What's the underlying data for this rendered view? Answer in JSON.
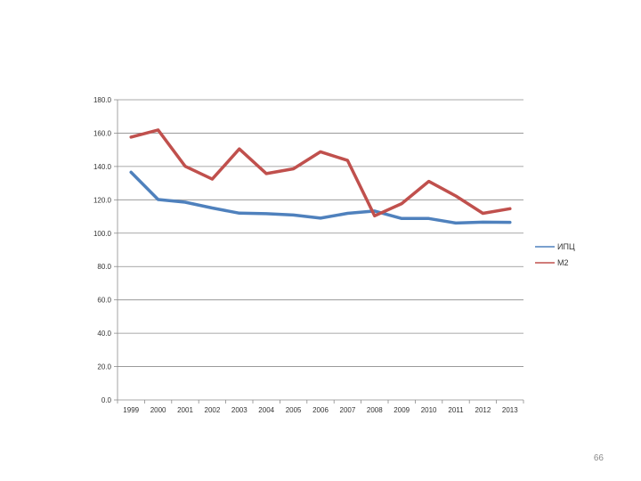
{
  "chart_data": {
    "type": "line",
    "title": "",
    "xlabel": "",
    "ylabel": "",
    "x": [
      "1999",
      "2000",
      "2001",
      "2002",
      "2003",
      "2004",
      "2005",
      "2006",
      "2007",
      "2008",
      "2009",
      "2010",
      "2011",
      "2012",
      "2013"
    ],
    "ylim": [
      0,
      180
    ],
    "y_ticks": [
      "0.0",
      "20.0",
      "40.0",
      "60.0",
      "80.0",
      "100.0",
      "120.0",
      "140.0",
      "160.0",
      "180.0"
    ],
    "grid": true,
    "legend_position": "right",
    "series": [
      {
        "name": "ИПЦ",
        "color": "#4f81bd",
        "values": [
          136.5,
          120.2,
          118.6,
          115.1,
          112.0,
          111.7,
          110.9,
          109.0,
          111.9,
          113.3,
          108.8,
          108.8,
          106.1,
          106.6,
          106.5
        ]
      },
      {
        "name": "M2",
        "color": "#c0504d",
        "values": [
          157.6,
          161.9,
          140.1,
          132.4,
          150.5,
          135.7,
          138.6,
          148.8,
          143.6,
          110.4,
          117.7,
          131.1,
          122.3,
          111.9,
          114.7
        ]
      }
    ]
  },
  "page": {
    "number": "66"
  }
}
